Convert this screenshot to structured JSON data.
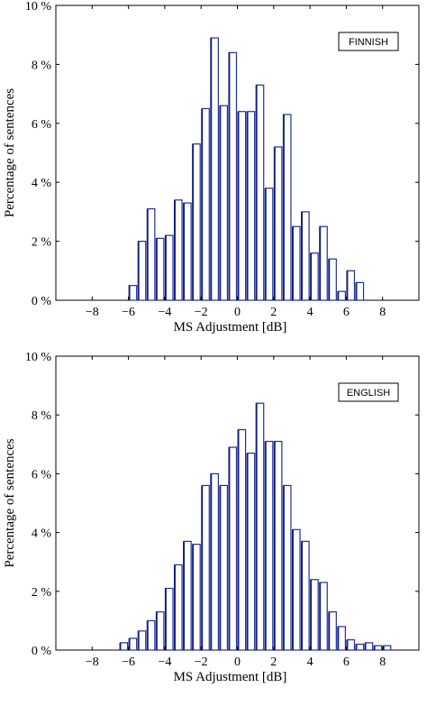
{
  "chart_data": [
    {
      "type": "bar",
      "panel": "top",
      "legend_label": "FINNISH",
      "legend_position": "top-right",
      "xlabel": "MS Adjustment [dB]",
      "ylabel": "Percentage of sentences",
      "xlim": [
        -10,
        10
      ],
      "ylim": [
        0,
        10
      ],
      "x_ticks": [
        "−8",
        "−6",
        "−4",
        "−2",
        "0",
        "2",
        "4",
        "6",
        "8"
      ],
      "y_ticks": [
        "0 %",
        "2 %",
        "4 %",
        "6 %",
        "8 %",
        "10 %"
      ],
      "grid": false,
      "series": [
        {
          "color": "#1e2f9c",
          "x": [
            -5.75,
            -5.25,
            -4.75,
            -4.25,
            -3.75,
            -3.25,
            -2.75,
            -2.25,
            -1.75,
            -1.25,
            -0.75,
            -0.25,
            0.25,
            0.75,
            1.25,
            1.75,
            2.25,
            2.75,
            3.25,
            3.75,
            4.25,
            4.75,
            5.25,
            5.75,
            6.25,
            6.75
          ],
          "values": [
            0.5,
            2.0,
            3.1,
            2.1,
            2.2,
            3.4,
            3.3,
            5.3,
            6.5,
            8.9,
            6.6,
            8.4,
            6.4,
            6.4,
            7.3,
            3.8,
            5.2,
            6.3,
            2.5,
            3.0,
            1.6,
            2.5,
            1.4,
            0.3,
            1.0,
            0.6
          ]
        }
      ]
    },
    {
      "type": "bar",
      "panel": "bottom",
      "legend_label": "ENGLISH",
      "legend_position": "top-right",
      "xlabel": "MS Adjustment [dB]",
      "ylabel": "Percentage of sentences",
      "xlim": [
        -10,
        10
      ],
      "ylim": [
        0,
        10
      ],
      "x_ticks": [
        "−8",
        "−6",
        "−4",
        "−2",
        "0",
        "2",
        "4",
        "6",
        "8"
      ],
      "y_ticks": [
        "0 %",
        "2 %",
        "4 %",
        "6 %",
        "8 %",
        "10 %"
      ],
      "grid": false,
      "series": [
        {
          "color": "#1e2f9c",
          "x": [
            -6.25,
            -5.75,
            -5.25,
            -4.75,
            -4.25,
            -3.75,
            -3.25,
            -2.75,
            -2.25,
            -1.75,
            -1.25,
            -0.75,
            -0.25,
            0.25,
            0.75,
            1.25,
            1.75,
            2.25,
            2.75,
            3.25,
            3.75,
            4.25,
            4.75,
            5.25,
            5.75,
            6.25,
            6.75,
            7.25,
            7.75,
            8.25
          ],
          "values": [
            0.25,
            0.4,
            0.65,
            1.0,
            1.3,
            2.1,
            2.9,
            3.7,
            3.6,
            5.6,
            6.0,
            5.6,
            6.9,
            7.5,
            6.7,
            8.4,
            7.1,
            7.1,
            5.6,
            4.1,
            3.7,
            2.4,
            2.3,
            1.3,
            0.8,
            0.35,
            0.2,
            0.25,
            0.15,
            0.15
          ]
        }
      ]
    }
  ]
}
